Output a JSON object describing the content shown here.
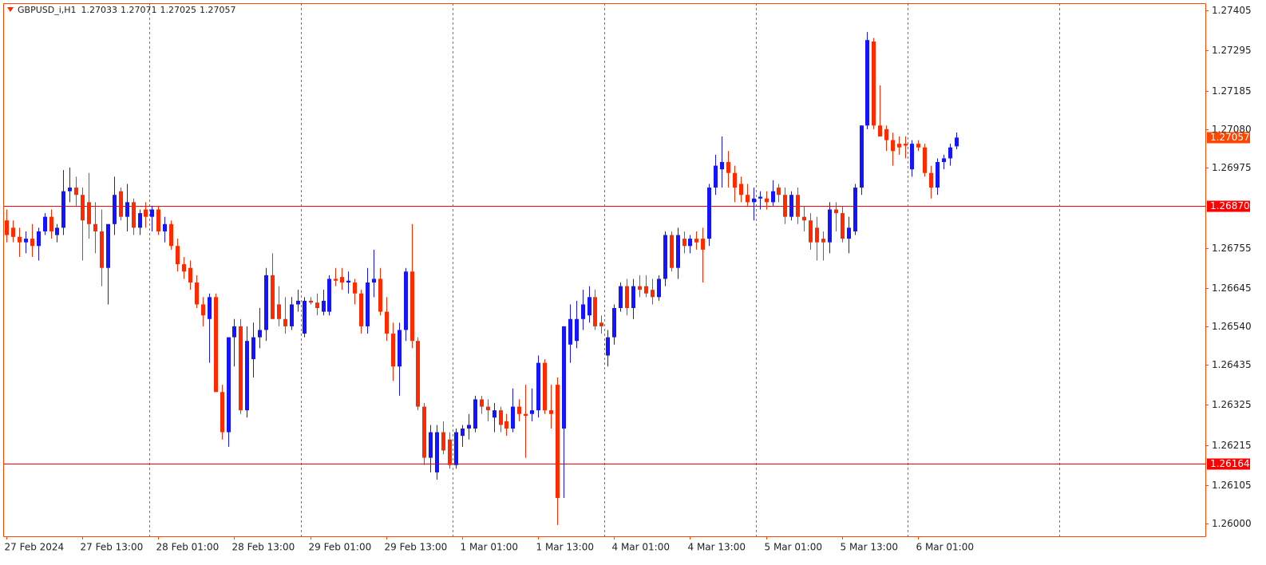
{
  "chart_data": {
    "type": "candlestick",
    "symbol": "GBPUSD_i,H1",
    "categories": [
      "27 Feb 2024",
      null,
      null,
      null,
      null,
      null,
      null,
      null,
      null,
      null,
      null,
      null,
      "27 Feb 13:00",
      null,
      null,
      null,
      null,
      null,
      null,
      null,
      null,
      null,
      null,
      null,
      "28 Feb 01:00",
      null,
      null,
      null,
      null,
      null,
      null,
      null,
      null,
      null,
      null,
      null,
      "28 Feb 13:00",
      null,
      null,
      null,
      null,
      null,
      null,
      null,
      null,
      null,
      null,
      null,
      "29 Feb 01:00",
      null,
      null,
      null,
      null,
      null,
      null,
      null,
      null,
      null,
      null,
      null,
      "29 Feb 13:00",
      null,
      null,
      null,
      null,
      null,
      null,
      null,
      null,
      null,
      null,
      null,
      "1 Mar 01:00",
      null,
      null,
      null,
      null,
      null,
      null,
      null,
      null,
      null,
      null,
      null,
      "1 Mar 13:00",
      null,
      null,
      null,
      null,
      null,
      null,
      null,
      null,
      null,
      null,
      null,
      "4 Mar 01:00",
      null,
      null,
      null,
      null,
      null,
      null,
      null,
      null,
      null,
      null,
      null,
      "4 Mar 13:00",
      null,
      null,
      null,
      null,
      null,
      null,
      null,
      null,
      null,
      null,
      null,
      "5 Mar 01:00",
      null,
      null,
      null,
      null,
      null,
      null,
      null,
      null,
      null,
      null,
      null,
      "5 Mar 13:00",
      null,
      null,
      null,
      null,
      null,
      null,
      null,
      null,
      null,
      null,
      null,
      "6 Mar 01:00",
      null,
      null,
      null,
      null,
      null,
      null
    ],
    "open": [
      1.2683,
      1.2681,
      1.26785,
      1.2677,
      1.2678,
      1.2676,
      1.268,
      1.2684,
      1.2679,
      1.2681,
      1.2691,
      1.2692,
      1.269,
      1.2688,
      1.2682,
      1.268,
      1.267,
      1.2682,
      1.2691,
      1.2684,
      1.2688,
      1.2681,
      1.2686,
      1.2684,
      1.2686,
      1.268,
      1.2682,
      1.2676,
      1.2671,
      1.267,
      1.2666,
      1.266,
      1.2656,
      1.2662,
      1.2636,
      1.2625,
      1.2651,
      1.2654,
      1.2631,
      1.2645,
      1.2651,
      1.2653,
      1.2668,
      1.266,
      1.2656,
      1.2654,
      1.266,
      1.2652,
      1.2661,
      1.26605,
      1.2658,
      1.2658,
      1.2667,
      1.26675,
      1.2666,
      1.2666,
      1.2663,
      1.2654,
      1.2666,
      1.2667,
      1.2658,
      1.2652,
      1.2643,
      1.2653,
      1.2669,
      1.265,
      1.2632,
      1.2618,
      1.2614,
      1.2625,
      1.2623,
      1.2616,
      1.2624,
      1.2626,
      1.2626,
      1.2634,
      1.2632,
      1.2629,
      1.2631,
      1.2628,
      1.2626,
      1.2632,
      1.263,
      1.263,
      1.2631,
      1.2644,
      1.2631,
      1.2638,
      1.2626,
      1.2649,
      1.265,
      1.2656,
      1.2657,
      1.2662,
      1.2655,
      1.2646,
      1.2651,
      1.2659,
      1.2665,
      1.2659,
      1.2665,
      1.2665,
      1.2664,
      1.2662,
      1.2667,
      1.2679,
      1.267,
      1.2678,
      1.2676,
      1.2678,
      1.2678,
      1.2678,
      1.2692,
      1.2697,
      1.2699,
      1.2696,
      1.2693,
      1.269,
      1.2688,
      1.2689,
      1.2689,
      1.2688,
      1.2692,
      1.269,
      1.2684,
      1.269,
      1.2684,
      1.2683,
      1.2681,
      1.2678,
      1.2677,
      1.2686,
      1.2685,
      1.2678,
      1.268,
      1.2692,
      1.2709,
      1.2732,
      1.2709,
      1.2708,
      1.2705,
      1.2704,
      1.2704,
      1.2697,
      1.2704,
      1.2703,
      1.2696,
      1.2692,
      1.2699,
      1.27,
      1.27033
    ],
    "high": [
      1.2686,
      1.2683,
      1.2681,
      1.268,
      1.2682,
      1.2681,
      1.2685,
      1.2686,
      1.2682,
      1.26968,
      1.26975,
      1.2695,
      1.2692,
      1.2696,
      1.2688,
      1.2686,
      1.2682,
      1.2695,
      1.2692,
      1.2693,
      1.2689,
      1.2686,
      1.2688,
      1.2687,
      1.2687,
      1.2684,
      1.2683,
      1.2678,
      1.2673,
      1.2672,
      1.2668,
      1.2662,
      1.2663,
      1.2663,
      1.2638,
      1.2651,
      1.2656,
      1.2656,
      1.2654,
      1.2655,
      1.2659,
      1.267,
      1.2674,
      1.2665,
      1.2662,
      1.2662,
      1.2664,
      1.2662,
      1.2662,
      1.2663,
      1.2664,
      1.2668,
      1.267,
      1.267,
      1.2669,
      1.2667,
      1.2664,
      1.267,
      1.2675,
      1.267,
      1.2662,
      1.2655,
      1.2655,
      1.267,
      1.2682,
      1.2651,
      1.2633,
      1.2627,
      1.2627,
      1.2628,
      1.2625,
      1.2626,
      1.2627,
      1.263,
      1.2635,
      1.2635,
      1.2634,
      1.2633,
      1.2632,
      1.263,
      1.2637,
      1.2634,
      1.2638,
      1.2637,
      1.2646,
      1.2645,
      1.2638,
      1.264,
      1.2654,
      1.266,
      1.2661,
      1.2664,
      1.2665,
      1.2664,
      1.2657,
      1.2653,
      1.266,
      1.2666,
      1.2667,
      1.2667,
      1.2668,
      1.2668,
      1.2667,
      1.2668,
      1.268,
      1.268,
      1.2681,
      1.268,
      1.2679,
      1.268,
      1.2681,
      1.2693,
      1.2701,
      1.2706,
      1.2702,
      1.2698,
      1.2695,
      1.2693,
      1.2692,
      1.2691,
      1.2691,
      1.2694,
      1.2693,
      1.2692,
      1.2691,
      1.2692,
      1.2687,
      1.2685,
      1.2684,
      1.268,
      1.2688,
      1.2688,
      1.2687,
      1.2684,
      1.2693,
      1.2709,
      1.27346,
      1.2733,
      1.272,
      1.2709,
      1.2707,
      1.2706,
      1.2706,
      1.2705,
      1.2705,
      1.2704,
      1.2698,
      1.27,
      1.2701,
      1.2704,
      1.27071
    ],
    "low": [
      1.2677,
      1.2677,
      1.2673,
      1.2674,
      1.2673,
      1.2672,
      1.2679,
      1.2678,
      1.2677,
      1.2679,
      1.2688,
      1.2687,
      1.2672,
      1.2678,
      1.2674,
      1.2665,
      1.266,
      1.2679,
      1.2683,
      1.268,
      1.2679,
      1.2679,
      1.2681,
      1.268,
      1.2679,
      1.2677,
      1.2675,
      1.2669,
      1.2667,
      1.2664,
      1.2659,
      1.2654,
      1.2644,
      1.2636,
      1.2623,
      1.2621,
      1.2643,
      1.263,
      1.2629,
      1.264,
      1.2648,
      1.265,
      1.2656,
      1.2654,
      1.2652,
      1.2653,
      1.2658,
      1.2651,
      1.266,
      1.2657,
      1.2657,
      1.2657,
      1.2665,
      1.2664,
      1.2663,
      1.266,
      1.2652,
      1.2652,
      1.2662,
      1.2657,
      1.265,
      1.2639,
      1.2635,
      1.265,
      1.2648,
      1.2631,
      1.2616,
      1.2614,
      1.2612,
      1.2619,
      1.2615,
      1.2615,
      1.2621,
      1.2623,
      1.2625,
      1.263,
      1.2628,
      1.2625,
      1.2625,
      1.2624,
      1.2625,
      1.2628,
      1.2618,
      1.2628,
      1.2629,
      1.263,
      1.2626,
      1.25996,
      1.2607,
      1.2644,
      1.2648,
      1.2653,
      1.2655,
      1.2653,
      1.2652,
      1.2643,
      1.2649,
      1.2658,
      1.2657,
      1.2656,
      1.2662,
      1.2662,
      1.266,
      1.2661,
      1.2665,
      1.2669,
      1.2667,
      1.2674,
      1.2674,
      1.2675,
      1.2666,
      1.2676,
      1.269,
      1.2692,
      1.2692,
      1.2688,
      1.2688,
      1.2687,
      1.2683,
      1.2686,
      1.2686,
      1.2687,
      1.2688,
      1.2682,
      1.2683,
      1.2682,
      1.268,
      1.2675,
      1.2672,
      1.2672,
      1.2674,
      1.268,
      1.2677,
      1.2674,
      1.2679,
      1.269,
      1.2708,
      1.2708,
      1.2706,
      1.2702,
      1.2698,
      1.2701,
      1.27,
      1.2695,
      1.2702,
      1.2695,
      1.2689,
      1.269,
      1.2697,
      1.2698,
      1.27025
    ],
    "close": [
      1.2679,
      1.26785,
      1.2677,
      1.2678,
      1.2676,
      1.268,
      1.2684,
      1.268,
      1.2681,
      1.2691,
      1.2692,
      1.269,
      1.2683,
      1.2682,
      1.268,
      1.267,
      1.2682,
      1.269,
      1.2684,
      1.2688,
      1.2681,
      1.2685,
      1.2684,
      1.2686,
      1.268,
      1.2682,
      1.2676,
      1.2671,
      1.2669,
      1.2666,
      1.266,
      1.2657,
      1.2662,
      1.2636,
      1.2625,
      1.2651,
      1.2654,
      1.2631,
      1.265,
      1.2651,
      1.2653,
      1.2668,
      1.2656,
      1.2656,
      1.2654,
      1.266,
      1.2661,
      1.2661,
      1.26605,
      1.2659,
      1.2661,
      1.2667,
      1.26665,
      1.2666,
      1.26665,
      1.2663,
      1.2654,
      1.2666,
      1.2667,
      1.2658,
      1.2652,
      1.2643,
      1.2653,
      1.2669,
      1.265,
      1.2632,
      1.2618,
      1.2625,
      1.2625,
      1.262,
      1.2616,
      1.2625,
      1.2626,
      1.2627,
      1.2634,
      1.2632,
      1.2631,
      1.2631,
      1.2627,
      1.2626,
      1.2632,
      1.263,
      1.26295,
      1.2631,
      1.2644,
      1.2631,
      1.263,
      1.2607,
      1.2654,
      1.2656,
      1.2656,
      1.266,
      1.2662,
      1.2654,
      1.2654,
      1.2651,
      1.2659,
      1.2665,
      1.2659,
      1.2665,
      1.2664,
      1.2663,
      1.2662,
      1.2667,
      1.2679,
      1.267,
      1.2679,
      1.2676,
      1.2678,
      1.2677,
      1.2675,
      1.2692,
      1.2698,
      1.2699,
      1.2696,
      1.2692,
      1.269,
      1.2688,
      1.2689,
      1.26895,
      1.2688,
      1.2691,
      1.269,
      1.2684,
      1.269,
      1.2684,
      1.2683,
      1.2677,
      1.2677,
      1.2677,
      1.2686,
      1.2685,
      1.2678,
      1.2681,
      1.2692,
      1.2709,
      1.27324,
      1.2709,
      1.2706,
      1.2705,
      1.2702,
      1.2703,
      1.27035,
      1.2704,
      1.2703,
      1.2696,
      1.2692,
      1.2699,
      1.27,
      1.2703,
      1.27057
    ],
    "up_color": "#1414ff",
    "down_color": "#ff2a00",
    "ylim": [
      1.25965,
      1.27425
    ],
    "yticks": [
      1.27405,
      1.27295,
      1.27185,
      {
        "value": 1.2708,
        "label": "1.27080"
      },
      1.26975,
      1.26755,
      1.26645,
      {
        "value": 1.2654,
        "label": "1.26540"
      },
      1.26435,
      1.26325,
      1.26215,
      1.26105,
      {
        "value": 1.26,
        "label": "1.26000"
      }
    ],
    "hlines": [
      {
        "value": 1.2687,
        "label": "1.26870"
      },
      {
        "value": 1.26164,
        "label": "1.26164"
      }
    ],
    "hline_color": "#ff0000",
    "grid": true
  }
}
